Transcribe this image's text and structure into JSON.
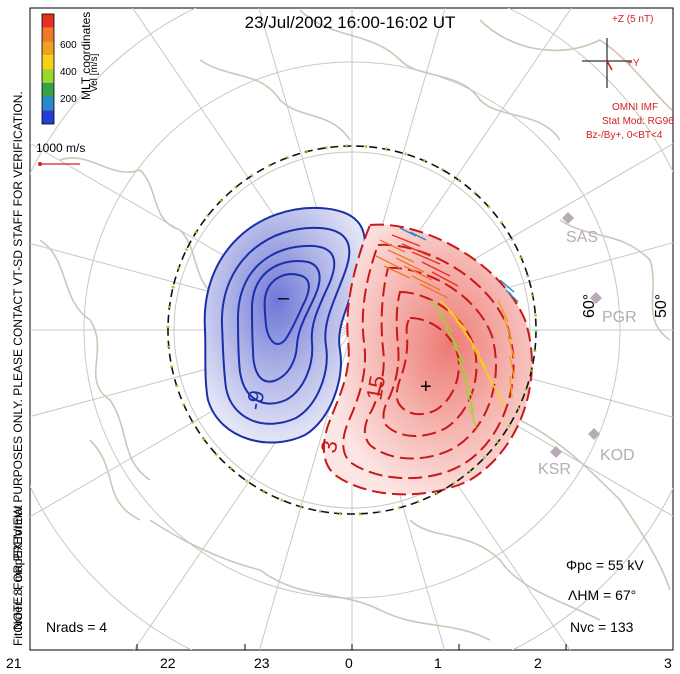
{
  "title": "23/Jul/2002 16:00-16:02 UT",
  "side_note": "NOTE: FOR PREVIEW PURPOSES ONLY. PLEASE CONTACT VT-SD STAFF FOR VERIFICATION.",
  "fit_info": "FitOrder: 8, mapEX format",
  "coordinates_label": "MLT coordinates",
  "colorbar": {
    "label": "Vel [m/s]",
    "ticks": [
      "600",
      "400",
      "200"
    ],
    "colors": [
      "#e83020",
      "#f07828",
      "#f0a020",
      "#f8d018",
      "#98d830",
      "#38a048",
      "#2888c8",
      "#2040d8"
    ]
  },
  "scale_vector": {
    "label": "1000 m/s",
    "color": "#d02020"
  },
  "imf": {
    "z_label": "+Z (5 nT)",
    "y_label": "+Y",
    "source": "OMNI IMF",
    "stat_mod": "Stat Mod: RG96",
    "conditions": "Bz-/By+, 0<BT<4",
    "color": "#d02020"
  },
  "stations": [
    {
      "name": "SAS"
    },
    {
      "name": "PGR"
    },
    {
      "name": "KOD"
    },
    {
      "name": "KSR"
    }
  ],
  "latitude_labels": [
    "60°",
    "50°"
  ],
  "contours": {
    "negative_label": "-9",
    "positive_labels": [
      "15",
      "3"
    ],
    "min_marker": "–",
    "max_marker": "+",
    "negative_color": "#1c2fa8",
    "positive_color": "#c81818"
  },
  "stats": {
    "phi_pc": "Φpc = 55 kV",
    "lambda_hm": "ΛHM = 67°",
    "n_vc": "Nvc = 133",
    "n_rads": "Nrads = 4"
  },
  "mlt_ticks": [
    "21",
    "22",
    "23",
    "0",
    "1",
    "2",
    "3"
  ]
}
